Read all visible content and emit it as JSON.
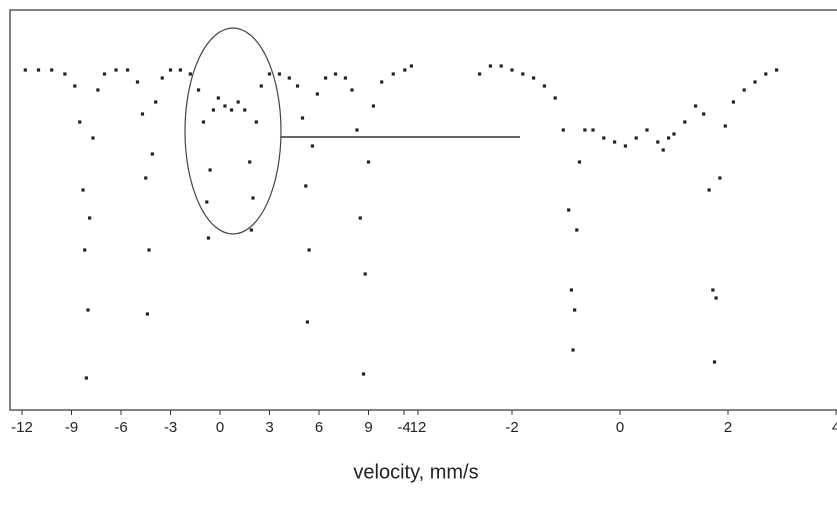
{
  "xlabel": "velocity, mm/s",
  "chart_data": [
    {
      "type": "scatter",
      "color": "#222222",
      "x": [
        -11.8,
        -11.0,
        -10.2,
        -9.4,
        -8.8,
        -8.5,
        -8.3,
        -8.2,
        -8.1,
        -8.0,
        -7.9,
        -7.7,
        -7.4,
        -7.0,
        -6.3,
        -5.6,
        -5.0,
        -4.7,
        -4.5,
        -4.4,
        -4.3,
        -4.1,
        -3.9,
        -3.5,
        -3.0,
        -2.4,
        -1.8,
        -1.3,
        -1.0,
        -0.8,
        -0.7,
        -0.6,
        -0.4,
        -0.1,
        0.3,
        0.7,
        1.1,
        1.5,
        1.8,
        1.9,
        2.0,
        2.2,
        2.5,
        3.0,
        3.6,
        4.2,
        4.7,
        5.0,
        5.2,
        5.3,
        5.4,
        5.6,
        5.9,
        6.4,
        7.0,
        7.6,
        8.0,
        8.3,
        8.5,
        8.7,
        8.8,
        9.0,
        9.3,
        9.8,
        10.5,
        11.2,
        11.6
      ],
      "values": [
        85,
        85,
        85,
        84,
        81,
        72,
        55,
        40,
        8,
        25,
        48,
        68,
        80,
        84,
        85,
        85,
        82,
        74,
        58,
        24,
        40,
        64,
        77,
        83,
        85,
        85,
        84,
        80,
        72,
        52,
        43,
        60,
        75,
        78,
        76,
        75,
        77,
        75,
        62,
        45,
        53,
        72,
        81,
        84,
        84,
        83,
        81,
        73,
        56,
        22,
        40,
        66,
        79,
        83,
        84,
        83,
        80,
        70,
        48,
        9,
        34,
        62,
        76,
        82,
        84,
        85,
        86
      ],
      "xlim": [
        -12,
        12
      ],
      "ylim": [
        0,
        100
      ],
      "xticks": [
        -12,
        -9,
        -6,
        -3,
        0,
        3,
        6,
        9,
        12
      ]
    },
    {
      "type": "scatter",
      "color": "#222222",
      "x": [
        -2.6,
        -2.4,
        -2.2,
        -2.0,
        -1.8,
        -1.6,
        -1.4,
        -1.2,
        -1.05,
        -0.95,
        -0.9,
        -0.87,
        -0.84,
        -0.8,
        -0.75,
        -0.65,
        -0.5,
        -0.3,
        -0.1,
        0.1,
        0.3,
        0.5,
        0.7,
        0.8,
        0.9,
        1.0,
        1.2,
        1.4,
        1.55,
        1.65,
        1.72,
        1.75,
        1.78,
        1.85,
        1.95,
        2.1,
        2.3,
        2.5,
        2.7,
        2.9
      ],
      "values": [
        84,
        86,
        86,
        85,
        84,
        83,
        81,
        78,
        70,
        50,
        30,
        15,
        25,
        45,
        62,
        70,
        70,
        68,
        67,
        66,
        68,
        70,
        67,
        65,
        68,
        69,
        72,
        76,
        74,
        55,
        30,
        12,
        28,
        58,
        71,
        77,
        80,
        82,
        84,
        85
      ],
      "xlim": [
        -4,
        4
      ],
      "ylim": [
        0,
        100
      ],
      "xticks": [
        -4,
        -2,
        0,
        2,
        4
      ]
    }
  ]
}
